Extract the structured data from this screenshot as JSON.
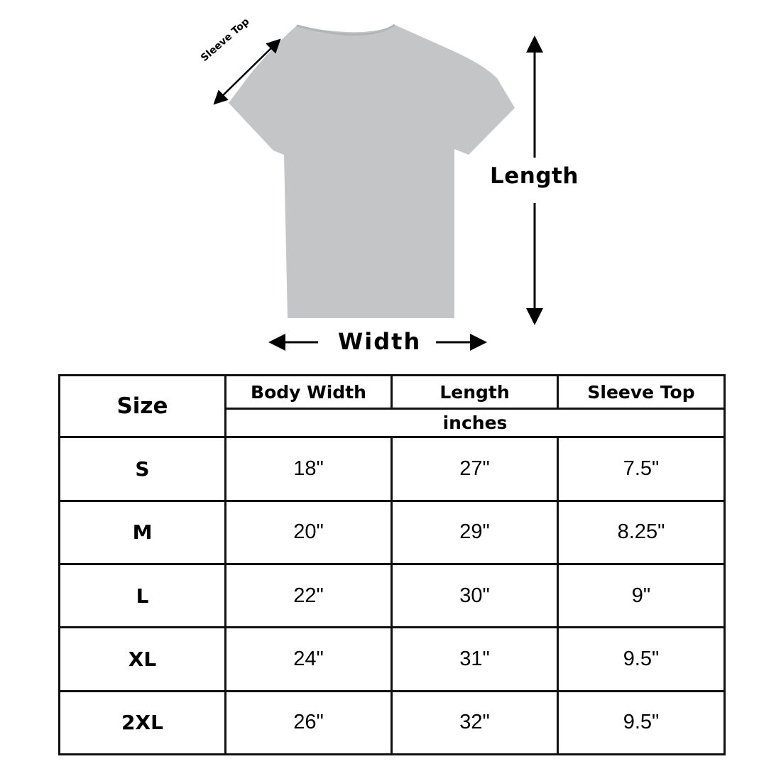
{
  "diagram": {
    "labels": {
      "sleeve_top": "Sleeve Top",
      "length": "Length",
      "width": "Width"
    },
    "garment_color": "#c4c5c7"
  },
  "table": {
    "headers": {
      "size": "Size",
      "body_width": "Body Width",
      "length": "Length",
      "sleeve_top": "Sleeve Top",
      "unit": "inches"
    },
    "rows": [
      {
        "size": "S",
        "body_width": "18\"",
        "length": "27\"",
        "sleeve_top": "7.5\""
      },
      {
        "size": "M",
        "body_width": "20\"",
        "length": "29\"",
        "sleeve_top": "8.25\""
      },
      {
        "size": "L",
        "body_width": "22\"",
        "length": "30\"",
        "sleeve_top": "9\""
      },
      {
        "size": "XL",
        "body_width": "24\"",
        "length": "31\"",
        "sleeve_top": "9.5\""
      },
      {
        "size": "2XL",
        "body_width": "26\"",
        "length": "32\"",
        "sleeve_top": "9.5\""
      }
    ]
  }
}
